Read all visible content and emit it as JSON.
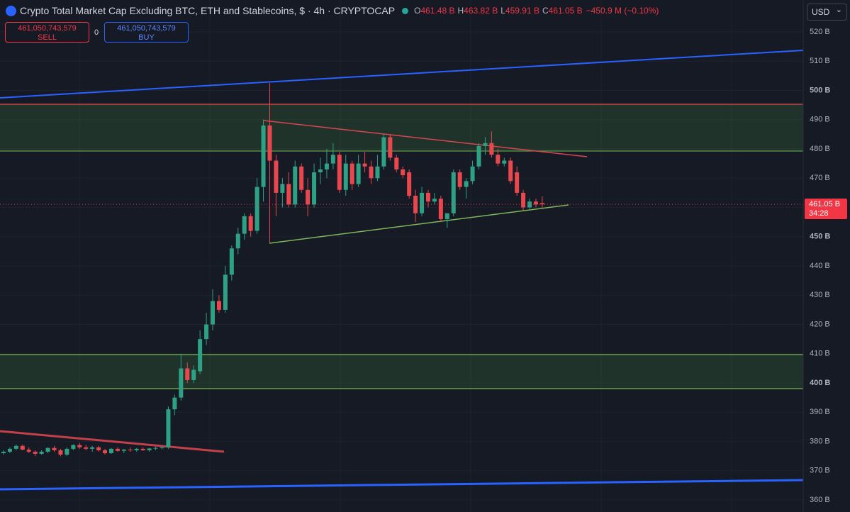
{
  "chart_data": {
    "type": "candlestick",
    "title": "Crypto Total Market Cap Excluding BTC, ETH and Stablecoins, $ · 4h · CRYPTOCAP",
    "ohlc": [
      {
        "label": "O",
        "value": "461.48 B"
      },
      {
        "label": "H",
        "value": "463.82 B"
      },
      {
        "label": "L",
        "value": "459.91 B"
      },
      {
        "label": "C",
        "value": "461.05 B"
      }
    ],
    "change": "−450.9 M (−0.10%)",
    "sell": {
      "price": "461,050,743,579",
      "label": "SELL"
    },
    "spread": "0",
    "buy": {
      "price": "461,050,743,579",
      "label": "BUY"
    },
    "currency": "USD",
    "last_price_label": "461.05 B",
    "countdown": "34:28",
    "up_color": "#2ea084",
    "down_color": "#e8474e",
    "ylim": [
      355.9,
      530.9
    ],
    "yticks": [
      {
        "value": 360,
        "label": "360 B"
      },
      {
        "value": 370,
        "label": "370 B"
      },
      {
        "value": 380,
        "label": "380 B"
      },
      {
        "value": 390,
        "label": "390 B"
      },
      {
        "value": 400,
        "label": "400 B"
      },
      {
        "value": 410,
        "label": "410 B"
      },
      {
        "value": 420,
        "label": "420 B"
      },
      {
        "value": 430,
        "label": "430 B"
      },
      {
        "value": 440,
        "label": "440 B"
      },
      {
        "value": 450,
        "label": "450 B"
      },
      {
        "value": 460,
        "label": "460 B"
      },
      {
        "value": 470,
        "label": "470 B"
      },
      {
        "value": 480,
        "label": "480 B"
      },
      {
        "value": 490,
        "label": "490 B"
      },
      {
        "value": 500,
        "label": "500 B"
      },
      {
        "value": 510,
        "label": "510 B"
      },
      {
        "value": 520,
        "label": "520 B"
      }
    ],
    "grid": true,
    "open": [
      376,
      376.5,
      377.5,
      378.5,
      377.2,
      376.5,
      375.8,
      376.5,
      377.8,
      377,
      375.5,
      377.5,
      378.8,
      378,
      377.5,
      378,
      377,
      376,
      377.5,
      376.8,
      377.2,
      377,
      377.5,
      377,
      377.6,
      377.8,
      378,
      391,
      395,
      405,
      401,
      404,
      415,
      420,
      428,
      425,
      437,
      446,
      451,
      457,
      452,
      467,
      488,
      476,
      465,
      468,
      461,
      474,
      466,
      461,
      472,
      473,
      475,
      478,
      466,
      475,
      468,
      475,
      474,
      470,
      474,
      484,
      477,
      473,
      472,
      464,
      458,
      465,
      462,
      463,
      456,
      458,
      472,
      467,
      469,
      474,
      481,
      482,
      478,
      475,
      476,
      472,
      465,
      460,
      462,
      461.48
    ],
    "high": [
      377,
      378,
      379,
      379,
      378,
      377,
      377,
      378,
      378.5,
      377.5,
      378,
      379,
      379.5,
      378.8,
      378.5,
      378.5,
      377.5,
      377.8,
      378,
      377.5,
      378,
      377.8,
      378,
      377.8,
      378.2,
      378.5,
      392,
      396,
      410,
      407,
      406,
      418,
      424,
      432,
      430,
      440,
      447,
      453,
      458,
      458,
      470,
      490,
      502.5,
      478,
      470,
      472,
      476,
      475,
      470,
      475,
      477,
      480,
      482,
      479,
      478,
      476,
      478,
      479,
      476,
      478,
      485,
      485,
      478,
      474,
      473,
      466,
      467,
      466,
      465,
      464,
      458,
      473,
      473,
      470,
      476,
      482,
      484,
      486,
      480,
      477,
      477,
      474,
      466,
      463,
      463,
      463.82
    ],
    "low": [
      375.5,
      376,
      377,
      377,
      376,
      375,
      375.5,
      376,
      376.5,
      375,
      375,
      377,
      377.5,
      377,
      376.5,
      376.5,
      375.5,
      375.8,
      376.5,
      376,
      376.5,
      376.5,
      376.8,
      376.5,
      377,
      377.3,
      377.5,
      389,
      394,
      400,
      400,
      403,
      413,
      418,
      424,
      424,
      435,
      444,
      449,
      450,
      451,
      462,
      448,
      457,
      460,
      460,
      460,
      465,
      457,
      460,
      468,
      470,
      473,
      465,
      464,
      466,
      467,
      472,
      468,
      469,
      473,
      476,
      472,
      470,
      463,
      455,
      457,
      460,
      461,
      455,
      453,
      457,
      466,
      463,
      468,
      473,
      478,
      477,
      474,
      474,
      468,
      464,
      459,
      459.5,
      460,
      459.91
    ],
    "close": [
      376.5,
      377.5,
      378.5,
      377.2,
      376.5,
      375.8,
      376.5,
      377.8,
      377,
      375.5,
      377.5,
      378.8,
      378,
      377.5,
      378,
      377,
      376,
      377.5,
      376.8,
      377.2,
      377,
      377.5,
      377,
      377.6,
      377.8,
      378,
      391,
      395,
      405,
      401,
      404.5,
      415,
      420,
      428,
      425,
      437,
      446,
      451,
      457,
      452,
      467,
      488,
      476,
      465,
      468,
      461,
      474,
      466,
      461,
      472,
      473,
      475,
      478,
      466,
      475,
      468,
      475,
      474,
      470,
      474,
      484,
      477,
      473,
      471,
      464,
      458,
      465,
      462,
      463,
      456,
      458,
      472,
      467,
      469,
      474,
      481,
      482,
      478,
      475,
      476,
      469,
      465,
      460,
      462,
      461,
      461.05
    ]
  }
}
